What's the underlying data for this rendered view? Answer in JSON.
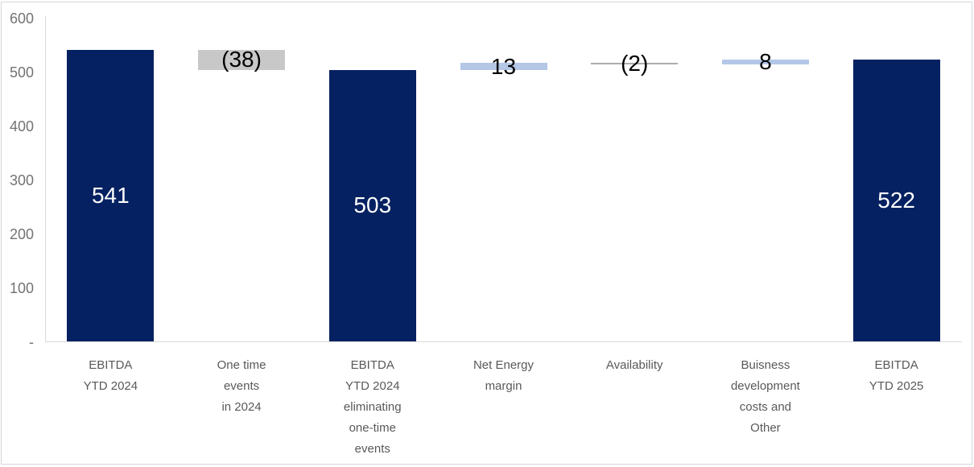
{
  "chart_data": {
    "type": "bar",
    "subtype": "waterfall",
    "title": "",
    "xlabel": "",
    "ylabel": "",
    "ylim": [
      0,
      600
    ],
    "grid": false,
    "legend_position": "none",
    "yticks": [
      {
        "v": 600,
        "label": "600"
      },
      {
        "v": 500,
        "label": "500"
      },
      {
        "v": 400,
        "label": "400"
      },
      {
        "v": 300,
        "label": "300"
      },
      {
        "v": 200,
        "label": "200"
      },
      {
        "v": 100,
        "label": "100"
      },
      {
        "v": 0,
        "label": "-"
      }
    ],
    "columns": [
      {
        "category_lines": [
          "EBITDA",
          "YTD 2024"
        ],
        "start": 0,
        "end": 541,
        "value": 541,
        "label": "541",
        "role": "total"
      },
      {
        "category_lines": [
          "One time",
          "events",
          "in 2024"
        ],
        "start": 541,
        "end": 503,
        "value": -38,
        "label": "(38)",
        "role": "negative"
      },
      {
        "category_lines": [
          "EBITDA",
          "YTD 2024",
          "eliminating",
          "one-time",
          "events"
        ],
        "start": 0,
        "end": 503,
        "value": 503,
        "label": "503",
        "role": "total"
      },
      {
        "category_lines": [
          "Net Energy",
          "margin"
        ],
        "start": 503,
        "end": 516,
        "value": 13,
        "label": "13",
        "role": "positive"
      },
      {
        "category_lines": [
          "Availability"
        ],
        "start": 516,
        "end": 514,
        "value": -2,
        "label": "(2)",
        "role": "negative-thin"
      },
      {
        "category_lines": [
          "Buisness",
          "development",
          "costs and",
          "Other"
        ],
        "start": 514,
        "end": 522,
        "value": 8,
        "label": "8",
        "role": "positive"
      },
      {
        "category_lines": [
          "EBITDA",
          "YTD 2025"
        ],
        "start": 0,
        "end": 522,
        "value": 522,
        "label": "522",
        "role": "total"
      }
    ],
    "colors": {
      "total": "#052161",
      "positive": "#b4c7e7",
      "negative": "#c8c8c8",
      "negative-thin": "#abadb0",
      "axis_line": "#d9d9d9",
      "tick_text": "#737373",
      "category_text": "#595959",
      "chart_border": "#d6d6d6"
    },
    "label_colors": {
      "total": "#ffffff",
      "positive": "#000000",
      "negative": "#000000",
      "negative-thin": "#000000"
    }
  }
}
